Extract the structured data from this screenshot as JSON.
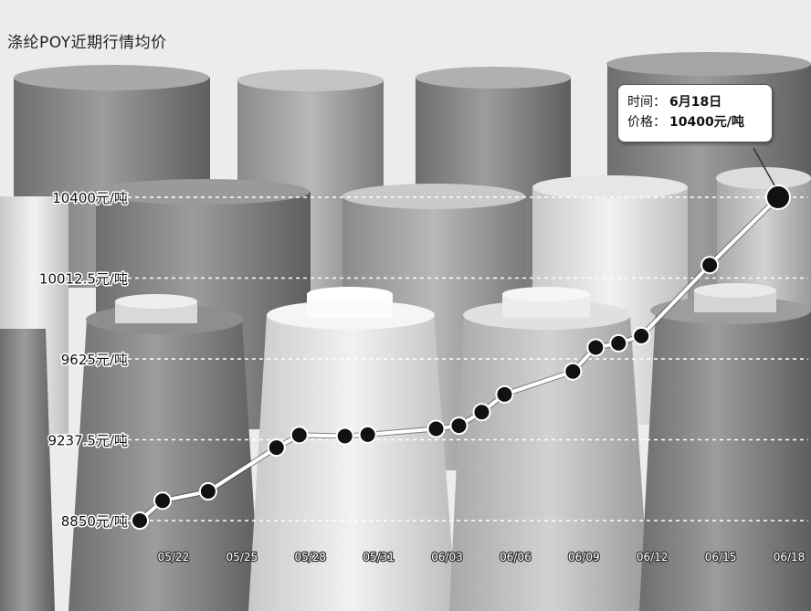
{
  "chart_title": "涤纶POY近期行情均价",
  "chart_data": {
    "type": "line",
    "title": "涤纶POY近期行情均价",
    "x_tick_labels": [
      "05/22",
      "05/25",
      "05/28",
      "05/31",
      "06/03",
      "06/06",
      "06/09",
      "06/12",
      "06/15",
      "06/18"
    ],
    "y_tick_labels": [
      "8850元/吨",
      "9237.5元/吨",
      "9625元/吨",
      "10012.5元/吨",
      "10400元/吨"
    ],
    "y_ticks": [
      8850,
      9237.5,
      9625,
      10012.5,
      10400
    ],
    "ylim": [
      8850,
      10400
    ],
    "xlim": [
      -1,
      27
    ],
    "grid": "horizontal dashed",
    "series": [
      {
        "x": [
          -1,
          0,
          2,
          5,
          6,
          8,
          9,
          12,
          13,
          14,
          15,
          18,
          19,
          20,
          21,
          24,
          27
        ],
        "y": [
          8850,
          8945,
          8990,
          9200,
          9260,
          9255,
          9262,
          9290,
          9305,
          9370,
          9455,
          9565,
          9680,
          9700,
          9735,
          10075,
          10400
        ]
      }
    ],
    "highlight_index": 16,
    "color": "#ffffff",
    "marker_color": "#111111"
  },
  "tooltip": {
    "time_label": "时间：",
    "time_value": "6月18日",
    "price_label": "价格：",
    "price_value": "10400元/吨"
  },
  "colors": {
    "line": "#ffffff",
    "marker": "#111111",
    "gridline": "#ffffff"
  }
}
